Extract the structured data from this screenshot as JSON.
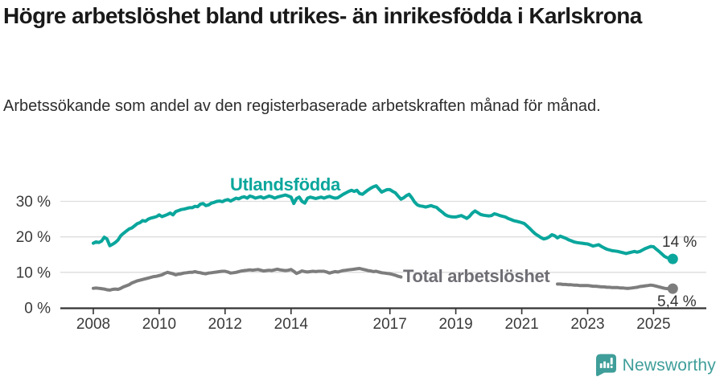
{
  "header": {
    "title": "Högre arbetslöshet bland utrikes- än inrikesfödda i Karlskrona",
    "subtitle": "Arbetssökande som andel av den registerbaserade arbetskraften månad för månad."
  },
  "branding": {
    "name": "Newsworthy",
    "logo_icon": "bar-chart-speech-bubble",
    "logo_color": "#3f9e99"
  },
  "chart_data": {
    "type": "line",
    "title": "Högre arbetslöshet bland utrikes- än inrikesfödda i Karlskrona",
    "unit": "%",
    "x_interval": "monthly",
    "x_start": "2008-01",
    "x_end": "2025-08",
    "xlim": [
      2007,
      2026.6
    ],
    "ylim": [
      0,
      36
    ],
    "grid": true,
    "grid_color": "#dddddd",
    "axis_color": "#333333",
    "tick_text_color": "#3a3a3a",
    "y_ticks": [
      {
        "value": 0,
        "label": "0 %"
      },
      {
        "value": 10,
        "label": "10 %"
      },
      {
        "value": 20,
        "label": "20 %"
      },
      {
        "value": 30,
        "label": "30 %"
      }
    ],
    "x_ticks": [
      {
        "value": 2008,
        "label": "2008"
      },
      {
        "value": 2010,
        "label": "2010"
      },
      {
        "value": 2012,
        "label": "2012"
      },
      {
        "value": 2014,
        "label": "2014"
      },
      {
        "value": 2017,
        "label": "2017"
      },
      {
        "value": 2019,
        "label": "2019"
      },
      {
        "value": 2021,
        "label": "2021"
      },
      {
        "value": 2023,
        "label": "2023"
      },
      {
        "value": 2025,
        "label": "2025"
      }
    ],
    "series": [
      {
        "name": "utlandsfodda",
        "label": "Utlandsfödda",
        "color": "#0aa69c",
        "end_label": "14 %",
        "end_value": 14,
        "values": [
          18.2,
          18.6,
          18.4,
          18.8,
          19.9,
          19.4,
          17.5,
          17.9,
          18.4,
          19.1,
          20.3,
          21.0,
          21.6,
          22.2,
          22.5,
          23.1,
          23.7,
          24.0,
          24.6,
          24.4,
          25.0,
          25.3,
          25.5,
          25.7,
          26.2,
          25.7,
          26.0,
          26.3,
          26.7,
          26.2,
          27.1,
          27.4,
          27.7,
          27.8,
          28.0,
          28.2,
          28.2,
          28.6,
          28.5,
          29.2,
          29.4,
          28.8,
          29.0,
          29.5,
          29.7,
          30.0,
          30.1,
          29.9,
          30.3,
          30.5,
          30.1,
          30.5,
          30.9,
          30.7,
          31.1,
          31.3,
          30.9,
          31.5,
          31.3,
          30.9,
          31.1,
          31.3,
          30.9,
          31.2,
          31.5,
          31.3,
          30.9,
          31.2,
          31.4,
          31.6,
          31.8,
          31.5,
          31.2,
          29.4,
          30.8,
          31.2,
          30.0,
          29.5,
          30.9,
          31.2,
          31.0,
          30.8,
          31.0,
          31.2,
          30.9,
          31.2,
          31.4,
          31.1,
          30.9,
          31.0,
          31.5,
          32.0,
          32.4,
          32.8,
          33.1,
          32.8,
          33.1,
          32.2,
          32.0,
          32.6,
          33.2,
          33.7,
          34.1,
          34.4,
          33.5,
          32.6,
          33.0,
          33.3,
          33.3,
          32.8,
          32.4,
          31.5,
          30.6,
          31.0,
          31.6,
          32.0,
          31.0,
          29.8,
          29.0,
          28.7,
          28.6,
          28.4,
          28.6,
          28.8,
          28.5,
          28.3,
          27.6,
          27.0,
          26.3,
          25.9,
          25.7,
          25.6,
          25.6,
          25.8,
          26.0,
          25.6,
          25.2,
          25.8,
          26.7,
          27.3,
          26.8,
          26.3,
          26.1,
          26.0,
          25.9,
          26.0,
          26.5,
          26.3,
          26.0,
          25.8,
          25.6,
          25.2,
          24.9,
          24.6,
          24.4,
          24.2,
          24.0,
          23.7,
          23.0,
          22.3,
          21.5,
          20.8,
          20.3,
          19.8,
          19.4,
          19.6,
          20.0,
          20.6,
          20.3,
          19.7,
          20.2,
          19.9,
          19.6,
          19.2,
          18.9,
          18.6,
          18.4,
          18.3,
          18.2,
          18.1,
          18.0,
          17.7,
          17.4,
          17.6,
          17.8,
          17.3,
          16.9,
          16.5,
          16.3,
          16.1,
          16.0,
          15.9,
          15.7,
          15.5,
          15.3,
          15.5,
          15.7,
          15.9,
          15.7,
          15.9,
          16.3,
          16.7,
          17.0,
          17.3,
          17.2,
          16.5,
          15.9,
          15.2,
          14.5,
          14.1,
          13.9,
          13.8
        ]
      },
      {
        "name": "total-arbetsloshet",
        "label": "Total arbetslöshet",
        "color": "#7d7d7d",
        "end_label": "5,4 %",
        "end_value": 5.4,
        "label_gap_indices": [
          112,
          169
        ],
        "values": [
          5.5,
          5.6,
          5.5,
          5.4,
          5.3,
          5.1,
          5.0,
          5.2,
          5.3,
          5.2,
          5.5,
          5.9,
          6.2,
          6.5,
          7.0,
          7.3,
          7.6,
          7.8,
          8.0,
          8.2,
          8.4,
          8.6,
          8.8,
          8.9,
          9.1,
          9.3,
          9.7,
          10.0,
          9.8,
          9.6,
          9.3,
          9.5,
          9.6,
          9.8,
          9.9,
          10.0,
          10.0,
          10.2,
          10.0,
          9.9,
          9.7,
          9.6,
          9.8,
          9.9,
          10.0,
          10.1,
          10.2,
          10.3,
          10.3,
          10.1,
          9.8,
          9.9,
          10.0,
          10.2,
          10.4,
          10.5,
          10.6,
          10.7,
          10.6,
          10.7,
          10.8,
          10.6,
          10.4,
          10.5,
          10.6,
          10.5,
          10.7,
          10.9,
          10.7,
          10.6,
          10.5,
          10.6,
          10.8,
          10.3,
          9.7,
          10.0,
          10.4,
          10.2,
          10.1,
          10.2,
          10.3,
          10.2,
          10.3,
          10.3,
          10.3,
          10.1,
          9.8,
          10.0,
          10.2,
          10.1,
          10.3,
          10.5,
          10.6,
          10.7,
          10.8,
          10.9,
          11.0,
          11.1,
          10.9,
          10.7,
          10.5,
          10.4,
          10.2,
          10.3,
          10.1,
          9.9,
          9.8,
          9.7,
          9.6,
          9.4,
          9.2,
          8.9,
          8.7,
          8.5,
          8.5,
          8.4,
          8.4,
          8.3,
          8.3,
          8.2,
          8.2,
          8.1,
          8.1,
          8.0,
          8.0,
          7.9,
          7.9,
          7.8,
          7.8,
          7.7,
          7.7,
          7.6,
          7.6,
          7.5,
          7.5,
          7.4,
          7.4,
          7.4,
          7.3,
          7.3,
          7.4,
          7.4,
          7.5,
          7.5,
          7.6,
          7.6,
          7.7,
          7.7,
          7.6,
          7.6,
          7.5,
          7.5,
          7.4,
          7.4,
          7.3,
          7.3,
          7.2,
          7.2,
          7.1,
          7.1,
          7.0,
          7.0,
          6.9,
          6.9,
          6.8,
          6.8,
          6.8,
          6.8,
          6.8,
          6.7,
          6.7,
          6.6,
          6.6,
          6.5,
          6.5,
          6.4,
          6.4,
          6.3,
          6.3,
          6.3,
          6.3,
          6.2,
          6.1,
          6.1,
          6.0,
          5.9,
          5.9,
          5.8,
          5.8,
          5.7,
          5.7,
          5.7,
          5.6,
          5.6,
          5.5,
          5.5,
          5.6,
          5.7,
          5.8,
          6.0,
          6.1,
          6.2,
          6.3,
          6.4,
          6.3,
          6.1,
          5.9,
          5.7,
          5.5,
          5.4,
          5.4,
          5.4
        ]
      }
    ]
  }
}
